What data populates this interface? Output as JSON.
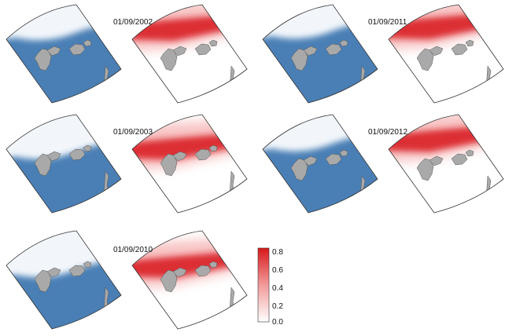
{
  "panels": [
    {
      "date": "01/09/2002",
      "ice_edge_depth": 0.32,
      "ice_pattern": "lower-band",
      "prob_pattern": "edge-band"
    },
    {
      "date": "01/09/2011",
      "ice_edge_depth": 0.28,
      "ice_pattern": "lower-band",
      "prob_pattern": "diagonal-band"
    },
    {
      "date": "01/09/2003",
      "ice_edge_depth": 0.55,
      "ice_pattern": "mid-band",
      "prob_pattern": "broad-lobe"
    },
    {
      "date": "01/09/2012",
      "ice_edge_depth": 0.35,
      "ice_pattern": "diagonal-band",
      "prob_pattern": "diagonal-band"
    },
    {
      "date": "01/09/2010",
      "ice_edge_depth": 0.6,
      "ice_pattern": "mid-band",
      "prob_pattern": "broad-band"
    }
  ],
  "colorbar": {
    "ticks": [
      "0.0",
      "0.2",
      "0.4",
      "0.6",
      "0.8"
    ],
    "min_color": "#ffffff",
    "max_color": "#d7191c"
  },
  "colors": {
    "open_water": "#4a7fb5",
    "sea_ice": "#f2f6fb",
    "land": "#a9a9a9",
    "probability_high": "#d7191c"
  }
}
